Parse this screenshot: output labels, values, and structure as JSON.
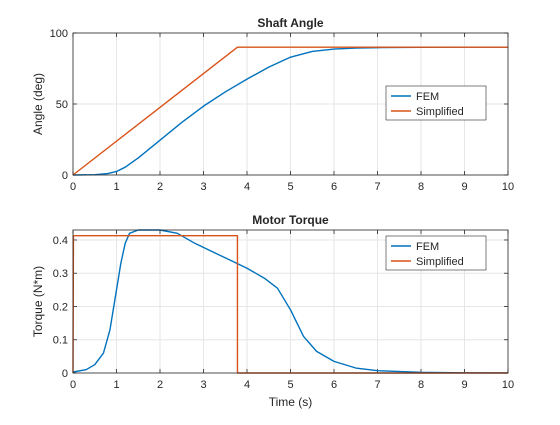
{
  "colors": {
    "fem": "#0072BD",
    "simplified": "#D95319",
    "axis": "#262626",
    "grid": "#e6e6e6",
    "background": "#ffffff"
  },
  "chart_data": [
    {
      "type": "line",
      "title": "Shaft Angle",
      "xlabel": "",
      "ylabel": "Angle (deg)",
      "xlim": [
        0,
        10
      ],
      "ylim": [
        0,
        100
      ],
      "x_ticks": [
        "0",
        "1",
        "2",
        "3",
        "4",
        "5",
        "6",
        "7",
        "8",
        "9",
        "10"
      ],
      "y_ticks": [
        "0",
        "50",
        "100"
      ],
      "grid": true,
      "legend_position": "right",
      "series": [
        {
          "name": "FEM",
          "x": [
            0,
            0.5,
            0.8,
            1.0,
            1.2,
            1.5,
            2.0,
            2.5,
            3.0,
            3.5,
            4.0,
            4.5,
            5.0,
            5.5,
            6.0,
            6.5,
            7.0,
            8.0,
            9.0,
            10.0
          ],
          "y": [
            0,
            0.2,
            1.0,
            2.5,
            5.5,
            12,
            24.5,
            37,
            48.5,
            58.5,
            67.5,
            76,
            83,
            87,
            88.7,
            89.4,
            89.7,
            89.9,
            90,
            90
          ]
        },
        {
          "name": "Simplified",
          "x": [
            0,
            3.78,
            10
          ],
          "y": [
            0,
            90,
            90
          ]
        }
      ]
    },
    {
      "type": "line",
      "title": "Motor Torque",
      "xlabel": "Time (s)",
      "ylabel": "Torque (N*m)",
      "xlim": [
        0,
        10
      ],
      "ylim": [
        0,
        0.43
      ],
      "x_ticks": [
        "0",
        "1",
        "2",
        "3",
        "4",
        "5",
        "6",
        "7",
        "8",
        "9",
        "10"
      ],
      "y_ticks": [
        "0",
        "0.1",
        "0.2",
        "0.3",
        "0.4"
      ],
      "grid": true,
      "legend_position": "top-right",
      "series": [
        {
          "name": "FEM",
          "x": [
            0,
            0.3,
            0.5,
            0.7,
            0.85,
            1.0,
            1.1,
            1.2,
            1.3,
            1.5,
            2.0,
            2.4,
            2.8,
            3.2,
            3.6,
            4.0,
            4.4,
            4.7,
            5.0,
            5.3,
            5.6,
            6.0,
            6.5,
            7.0,
            8.0,
            9.0,
            10.0
          ],
          "y": [
            0.003,
            0.01,
            0.025,
            0.06,
            0.13,
            0.25,
            0.33,
            0.39,
            0.42,
            0.43,
            0.43,
            0.42,
            0.39,
            0.365,
            0.34,
            0.315,
            0.285,
            0.255,
            0.19,
            0.11,
            0.065,
            0.035,
            0.015,
            0.007,
            0.002,
            0.0005,
            0.0001
          ]
        },
        {
          "name": "Simplified",
          "x": [
            0,
            0.01,
            3.78,
            3.781,
            10
          ],
          "y": [
            0,
            0.413,
            0.413,
            0,
            0
          ]
        }
      ]
    }
  ]
}
